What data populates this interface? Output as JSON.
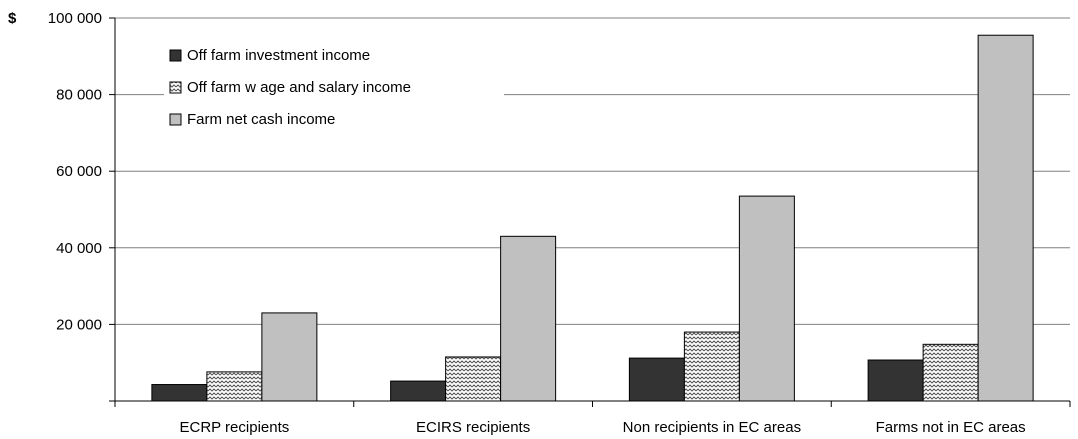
{
  "chart_data": {
    "type": "bar",
    "ylabel": "$",
    "ylim": [
      0,
      100000
    ],
    "yticks": [
      0,
      20000,
      40000,
      60000,
      80000,
      100000
    ],
    "ytick_labels": [
      "",
      "20 000",
      "40 000",
      "60 000",
      "80 000",
      "100 000"
    ],
    "grid": true,
    "legend_position": "top-left",
    "categories": [
      "ECRP recipients",
      "ECIRS recipients",
      "Non recipients in EC areas",
      "Farms not in EC areas"
    ],
    "series": [
      {
        "name": "Off farm investment income",
        "values": [
          4300,
          5200,
          11200,
          10700
        ],
        "pattern": "solid",
        "color": "#333333"
      },
      {
        "name": "Off farm w age and salary income",
        "values": [
          7600,
          11500,
          18000,
          14800
        ],
        "pattern": "zigzag",
        "color": "#ffffff"
      },
      {
        "name": "Farm net cash income",
        "values": [
          23000,
          43000,
          53500,
          95500
        ],
        "pattern": "solid",
        "color": "#c0c0c0"
      }
    ]
  }
}
